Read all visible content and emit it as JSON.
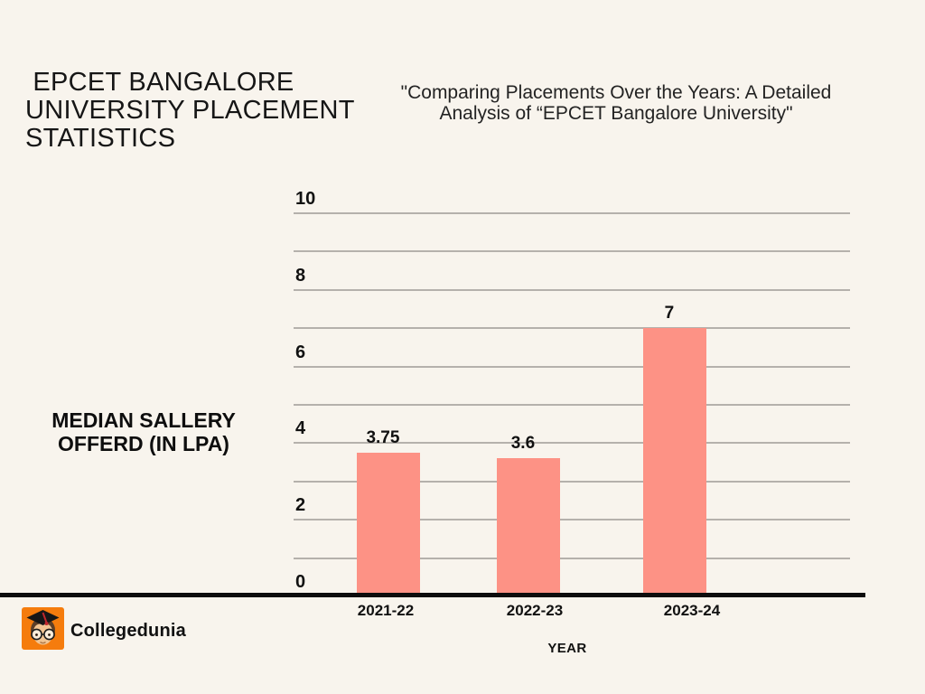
{
  "page": {
    "background": "#f8f4ed"
  },
  "header": {
    "title": " EPCET BANGALORE UNIVERSITY PLACEMENT STATISTICS",
    "subtitle": "\"Comparing Placements Over the Years: A Detailed Analysis of “EPCET Bangalore University\""
  },
  "chart_data": {
    "type": "bar",
    "categories": [
      "2021-22",
      "2022-23",
      "2023-24"
    ],
    "values": [
      3.75,
      3.6,
      7
    ],
    "value_labels": [
      "3.75",
      "3.6",
      "7"
    ],
    "xlabel": "YEAR",
    "ylabel": "MEDIAN SALLERY OFFERD (IN LPA)",
    "ylim": [
      0,
      10
    ],
    "yticks_labeled": [
      0,
      2,
      4,
      6,
      8,
      10
    ],
    "gridline_step": 1,
    "grid": "horizontal",
    "legend": "none",
    "bar_color": "#fd9285",
    "gridline_color": "#b5b1ac",
    "axis_color": "#0d0d0d",
    "text_color": "#111111"
  },
  "footer": {
    "brand": "Collegedunia",
    "logo_color": "#f57c0d",
    "logo_icon": "graduate-face-icon"
  }
}
